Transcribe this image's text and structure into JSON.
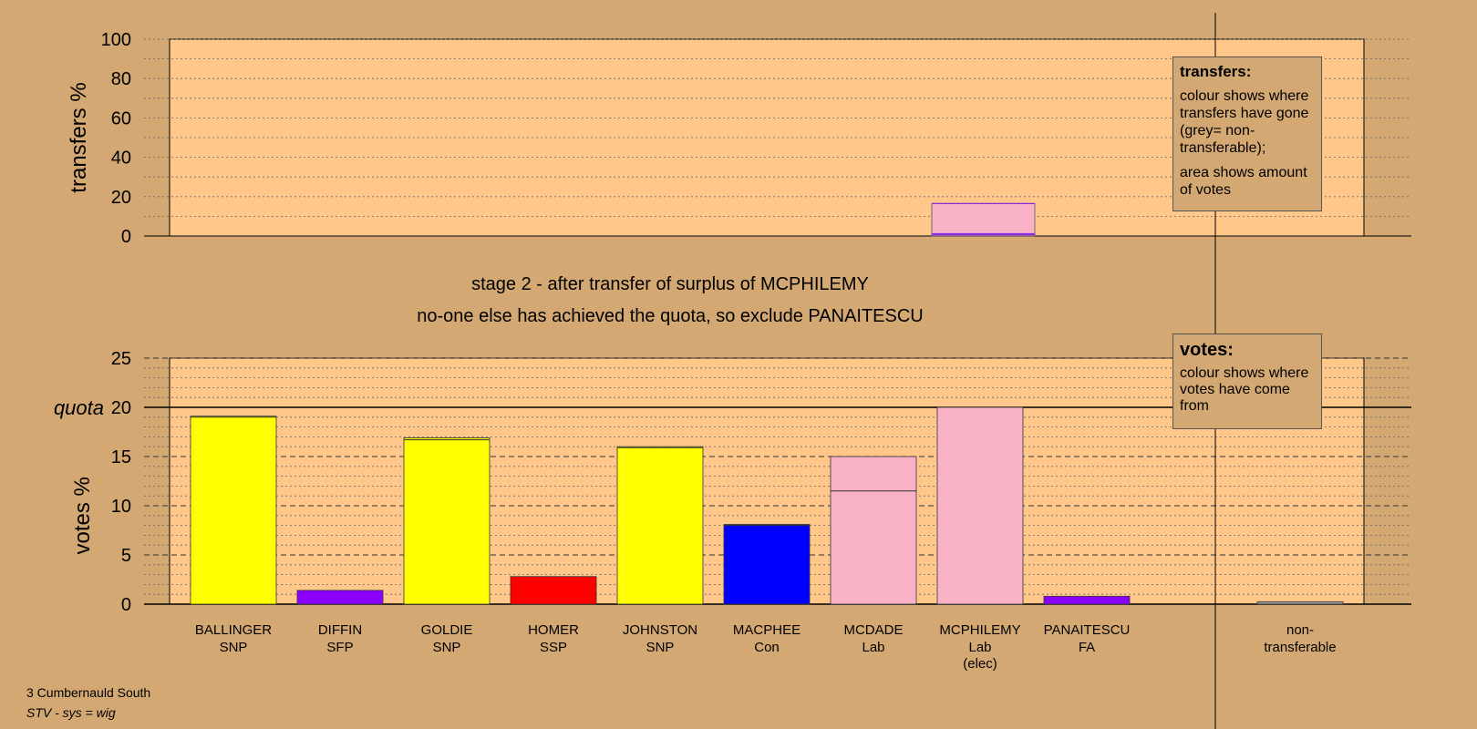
{
  "chart_data": [
    {
      "type": "bar",
      "ylabel": "transfers %",
      "ylim": [
        0,
        100
      ],
      "yticks": [
        0,
        20,
        40,
        60,
        80,
        100
      ],
      "grid": "dotted every 10",
      "categories": [
        "MCPHILEMY"
      ],
      "series": [
        {
          "category": "MCPHILEMY",
          "values": [
            16.5
          ],
          "inner_line": 1.0,
          "color": "#f9b1c6",
          "border": "#8a2be2"
        }
      ]
    },
    {
      "type": "bar",
      "ylabel": "votes %",
      "ylim": [
        0,
        25
      ],
      "yticks": [
        0,
        5,
        10,
        15,
        20,
        25
      ],
      "quota": 20,
      "quota_label": "quota",
      "grid": "dashed every 5, dotted every 1",
      "categories": [
        {
          "name": "BALLINGER",
          "party": "SNP",
          "extra": ""
        },
        {
          "name": "DIFFIN",
          "party": "SFP",
          "extra": ""
        },
        {
          "name": "GOLDIE",
          "party": "SNP",
          "extra": ""
        },
        {
          "name": "HOMER",
          "party": "SSP",
          "extra": ""
        },
        {
          "name": "JOHNSTON",
          "party": "SNP",
          "extra": ""
        },
        {
          "name": "MACPHEE",
          "party": "Con",
          "extra": ""
        },
        {
          "name": "MCDADE",
          "party": "Lab",
          "extra": ""
        },
        {
          "name": "MCPHILEMY",
          "party": "Lab",
          "extra": "(elec)"
        },
        {
          "name": "PANAITESCU",
          "party": "FA",
          "extra": ""
        },
        {
          "name": "non-",
          "party": "transferable",
          "extra": ""
        }
      ],
      "bars": [
        {
          "value": 19.1,
          "base": 19.0,
          "color": "#ffff00"
        },
        {
          "value": 1.4,
          "base": 1.4,
          "color": "#8b00ff"
        },
        {
          "value": 16.9,
          "base": 16.7,
          "color": "#ffff00"
        },
        {
          "value": 2.8,
          "base": 2.8,
          "color": "#ff0000"
        },
        {
          "value": 16.0,
          "base": 15.9,
          "color": "#ffff00"
        },
        {
          "value": 8.1,
          "base": 8.0,
          "color": "#0000ff"
        },
        {
          "value": 15.0,
          "base": 11.5,
          "color": "#f9b1c6"
        },
        {
          "value": 20.0,
          "base": 20.0,
          "color": "#f9b1c6"
        },
        {
          "value": 0.8,
          "base": 0.8,
          "color": "#8b00ff"
        },
        {
          "value": 0.25,
          "base": 0.25,
          "color": "#9a9a9a"
        }
      ]
    }
  ],
  "titles": {
    "line1": "stage 2 - after transfer of surplus of MCPHILEMY",
    "line2": "no-one else has achieved the quota, so exclude PANAITESCU"
  },
  "transfers_legend": {
    "head": "transfers:",
    "text1": "colour shows where transfers have gone (grey= non-transferable);",
    "text2": "area shows amount of votes"
  },
  "votes_legend": {
    "head": "votes:",
    "text": "colour shows where votes have come from"
  },
  "footer": {
    "line1": "3 Cumbernauld South",
    "line2": "STV - sys = wig"
  },
  "colors": {
    "background": "#d4a873",
    "plot_area": "#ffc88a"
  }
}
